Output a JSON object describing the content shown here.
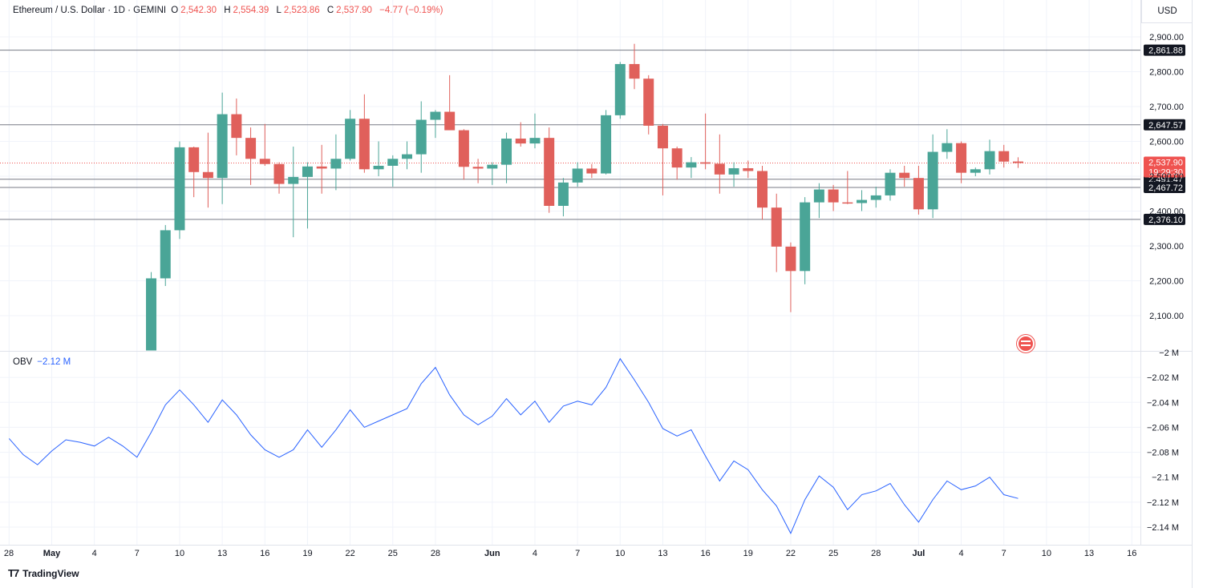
{
  "header": {
    "symbol": "Ethereum / U.S. Dollar · 1D · GEMINI",
    "open_label": "O",
    "open": "2,542.30",
    "high_label": "H",
    "high": "2,554.39",
    "low_label": "L",
    "low": "2,523.86",
    "close_label": "C",
    "close": "2,537.90",
    "change": "−4.77 (−0.19%)"
  },
  "currency": "USD",
  "obv_panel": {
    "label": "OBV",
    "value": "−2.12 M"
  },
  "branding": "TradingView",
  "colors": {
    "up": "#4aa597",
    "down": "#e0605b",
    "obv_line": "#2962ff",
    "grid": "#f0f3fa",
    "hline": "#787b86"
  },
  "chart_data": [
    {
      "type": "candlestick",
      "title": "Ethereum / U.S. Dollar · 1D · GEMINI",
      "ylim": [
        2000,
        2950
      ],
      "y_ticks": [
        2100,
        2200,
        2300,
        2400,
        2500,
        2600,
        2700,
        2800,
        2900
      ],
      "y_tick_labels": [
        "2,100.00",
        "2,200.00",
        "2,300.00",
        "2,400.00",
        "2,500.00",
        "2,600.00",
        "2,700.00",
        "2,800.00",
        "2,900.00"
      ],
      "x_tick_labels": [
        "28",
        "May",
        "4",
        "7",
        "10",
        "13",
        "16",
        "19",
        "22",
        "25",
        "28",
        "Jun",
        "4",
        "7",
        "10",
        "13",
        "16",
        "19",
        "22",
        "25",
        "28",
        "Jul",
        "4",
        "7",
        "10",
        "13",
        "16"
      ],
      "horizontal_levels": [
        2861.88,
        2647.57,
        2491.47,
        2467.72,
        2376.1
      ],
      "horizontal_level_labels": [
        "2,861.88",
        "2,647.57",
        "2,491.47",
        "2,467.72",
        "2,376.10"
      ],
      "last_price": 2537.9,
      "last_price_label": "2,537.90",
      "countdown": "19:29:30",
      "candles": [
        {
          "x": "May 8",
          "o": 2000,
          "h": 2225,
          "l": 2000,
          "c": 2207
        },
        {
          "x": "May 9",
          "o": 2207,
          "h": 2360,
          "l": 2185,
          "c": 2345
        },
        {
          "x": "May 10",
          "o": 2345,
          "h": 2600,
          "l": 2320,
          "c": 2583
        },
        {
          "x": "May 11",
          "o": 2583,
          "h": 2585,
          "l": 2440,
          "c": 2512
        },
        {
          "x": "May 12",
          "o": 2512,
          "h": 2625,
          "l": 2410,
          "c": 2495
        },
        {
          "x": "May 13",
          "o": 2495,
          "h": 2740,
          "l": 2420,
          "c": 2678
        },
        {
          "x": "May 14",
          "o": 2678,
          "h": 2723,
          "l": 2560,
          "c": 2610
        },
        {
          "x": "May 15",
          "o": 2610,
          "h": 2640,
          "l": 2475,
          "c": 2550
        },
        {
          "x": "May 16",
          "o": 2550,
          "h": 2650,
          "l": 2530,
          "c": 2535
        },
        {
          "x": "May 17",
          "o": 2535,
          "h": 2540,
          "l": 2450,
          "c": 2478
        },
        {
          "x": "May 18",
          "o": 2478,
          "h": 2585,
          "l": 2325,
          "c": 2498
        },
        {
          "x": "May 19",
          "o": 2498,
          "h": 2540,
          "l": 2350,
          "c": 2528
        },
        {
          "x": "May 20",
          "o": 2528,
          "h": 2590,
          "l": 2450,
          "c": 2522
        },
        {
          "x": "May 21",
          "o": 2522,
          "h": 2620,
          "l": 2460,
          "c": 2550
        },
        {
          "x": "May 22",
          "o": 2550,
          "h": 2690,
          "l": 2545,
          "c": 2665
        },
        {
          "x": "May 23",
          "o": 2665,
          "h": 2735,
          "l": 2510,
          "c": 2520
        },
        {
          "x": "May 24",
          "o": 2520,
          "h": 2600,
          "l": 2500,
          "c": 2530
        },
        {
          "x": "May 25",
          "o": 2530,
          "h": 2560,
          "l": 2470,
          "c": 2550
        },
        {
          "x": "May 26",
          "o": 2550,
          "h": 2600,
          "l": 2520,
          "c": 2563
        },
        {
          "x": "May 27",
          "o": 2563,
          "h": 2715,
          "l": 2510,
          "c": 2662
        },
        {
          "x": "May 28",
          "o": 2662,
          "h": 2690,
          "l": 2610,
          "c": 2685
        },
        {
          "x": "May 29",
          "o": 2685,
          "h": 2790,
          "l": 2640,
          "c": 2632
        },
        {
          "x": "May 30",
          "o": 2632,
          "h": 2635,
          "l": 2490,
          "c": 2527
        },
        {
          "x": "May 31",
          "o": 2527,
          "h": 2550,
          "l": 2480,
          "c": 2522
        },
        {
          "x": "Jun 1",
          "o": 2522,
          "h": 2540,
          "l": 2475,
          "c": 2533
        },
        {
          "x": "Jun 2",
          "o": 2533,
          "h": 2625,
          "l": 2480,
          "c": 2608
        },
        {
          "x": "Jun 3",
          "o": 2608,
          "h": 2655,
          "l": 2585,
          "c": 2594
        },
        {
          "x": "Jun 4",
          "o": 2594,
          "h": 2680,
          "l": 2580,
          "c": 2610
        },
        {
          "x": "Jun 5",
          "o": 2610,
          "h": 2640,
          "l": 2395,
          "c": 2415
        },
        {
          "x": "Jun 6",
          "o": 2415,
          "h": 2495,
          "l": 2385,
          "c": 2482
        },
        {
          "x": "Jun 7",
          "o": 2482,
          "h": 2540,
          "l": 2470,
          "c": 2522
        },
        {
          "x": "Jun 8",
          "o": 2522,
          "h": 2535,
          "l": 2495,
          "c": 2508
        },
        {
          "x": "Jun 9",
          "o": 2508,
          "h": 2690,
          "l": 2505,
          "c": 2675
        },
        {
          "x": "Jun 10",
          "o": 2675,
          "h": 2828,
          "l": 2665,
          "c": 2822
        },
        {
          "x": "Jun 11",
          "o": 2822,
          "h": 2880,
          "l": 2750,
          "c": 2780
        },
        {
          "x": "Jun 12",
          "o": 2780,
          "h": 2790,
          "l": 2620,
          "c": 2645
        },
        {
          "x": "Jun 13",
          "o": 2645,
          "h": 2650,
          "l": 2445,
          "c": 2580
        },
        {
          "x": "Jun 14",
          "o": 2580,
          "h": 2585,
          "l": 2490,
          "c": 2525
        },
        {
          "x": "Jun 15",
          "o": 2525,
          "h": 2555,
          "l": 2495,
          "c": 2540
        },
        {
          "x": "Jun 16",
          "o": 2540,
          "h": 2680,
          "l": 2520,
          "c": 2536
        },
        {
          "x": "Jun 17",
          "o": 2536,
          "h": 2620,
          "l": 2450,
          "c": 2505
        },
        {
          "x": "Jun 18",
          "o": 2505,
          "h": 2540,
          "l": 2470,
          "c": 2523
        },
        {
          "x": "Jun 19",
          "o": 2523,
          "h": 2545,
          "l": 2495,
          "c": 2515
        },
        {
          "x": "Jun 20",
          "o": 2515,
          "h": 2530,
          "l": 2375,
          "c": 2410
        },
        {
          "x": "Jun 21",
          "o": 2410,
          "h": 2450,
          "l": 2225,
          "c": 2298
        },
        {
          "x": "Jun 22",
          "o": 2298,
          "h": 2310,
          "l": 2110,
          "c": 2228
        },
        {
          "x": "Jun 23",
          "o": 2228,
          "h": 2440,
          "l": 2190,
          "c": 2425
        },
        {
          "x": "Jun 24",
          "o": 2425,
          "h": 2480,
          "l": 2380,
          "c": 2462
        },
        {
          "x": "Jun 25",
          "o": 2462,
          "h": 2475,
          "l": 2400,
          "c": 2425
        },
        {
          "x": "Jun 26",
          "o": 2425,
          "h": 2515,
          "l": 2420,
          "c": 2423
        },
        {
          "x": "Jun 27",
          "o": 2423,
          "h": 2460,
          "l": 2400,
          "c": 2432
        },
        {
          "x": "Jun 28",
          "o": 2432,
          "h": 2470,
          "l": 2410,
          "c": 2445
        },
        {
          "x": "Jun 29",
          "o": 2445,
          "h": 2520,
          "l": 2430,
          "c": 2510
        },
        {
          "x": "Jun 30",
          "o": 2510,
          "h": 2530,
          "l": 2470,
          "c": 2495
        },
        {
          "x": "Jul 1",
          "o": 2495,
          "h": 2530,
          "l": 2390,
          "c": 2405
        },
        {
          "x": "Jul 2",
          "o": 2405,
          "h": 2620,
          "l": 2380,
          "c": 2570
        },
        {
          "x": "Jul 3",
          "o": 2570,
          "h": 2635,
          "l": 2550,
          "c": 2595
        },
        {
          "x": "Jul 4",
          "o": 2595,
          "h": 2600,
          "l": 2480,
          "c": 2510
        },
        {
          "x": "Jul 5",
          "o": 2510,
          "h": 2525,
          "l": 2500,
          "c": 2520
        },
        {
          "x": "Jul 6",
          "o": 2520,
          "h": 2605,
          "l": 2505,
          "c": 2572
        },
        {
          "x": "Jul 7",
          "o": 2572,
          "h": 2590,
          "l": 2525,
          "c": 2542
        },
        {
          "x": "Jul 8",
          "o": 2542.3,
          "h": 2554.39,
          "l": 2523.86,
          "c": 2537.9
        }
      ]
    },
    {
      "type": "line",
      "title": "OBV",
      "ylim": [
        -2.146,
        -1.998
      ],
      "y_ticks": [
        -2.0,
        -2.02,
        -2.04,
        -2.06,
        -2.08,
        -2.1,
        -2.12,
        -2.14
      ],
      "y_tick_labels": [
        "−2 M",
        "−2.02 M",
        "−2.04 M",
        "−2.06 M",
        "−2.08 M",
        "−2.1 M",
        "−2.12 M",
        "−2.14 M"
      ],
      "series": [
        {
          "name": "OBV",
          "x_start": "Apr 28",
          "values": [
            -2.069,
            -2.082,
            -2.09,
            -2.079,
            -2.07,
            -2.072,
            -2.075,
            -2.068,
            -2.075,
            -2.084,
            -2.064,
            -2.042,
            -2.03,
            -2.042,
            -2.056,
            -2.038,
            -2.05,
            -2.066,
            -2.078,
            -2.084,
            -2.078,
            -2.062,
            -2.076,
            -2.062,
            -2.046,
            -2.06,
            -2.055,
            -2.05,
            -2.045,
            -2.025,
            -2.012,
            -2.034,
            -2.05,
            -2.058,
            -2.051,
            -2.037,
            -2.05,
            -2.039,
            -2.056,
            -2.043,
            -2.039,
            -2.042,
            -2.028,
            -2.005,
            -2.022,
            -2.04,
            -2.061,
            -2.067,
            -2.062,
            -2.083,
            -2.103,
            -2.087,
            -2.094,
            -2.11,
            -2.123,
            -2.145,
            -2.118,
            -2.099,
            -2.108,
            -2.126,
            -2.114,
            -2.111,
            -2.105,
            -2.122,
            -2.136,
            -2.118,
            -2.103,
            -2.11,
            -2.107,
            -2.1,
            -2.114,
            -2.117
          ]
        }
      ]
    }
  ]
}
